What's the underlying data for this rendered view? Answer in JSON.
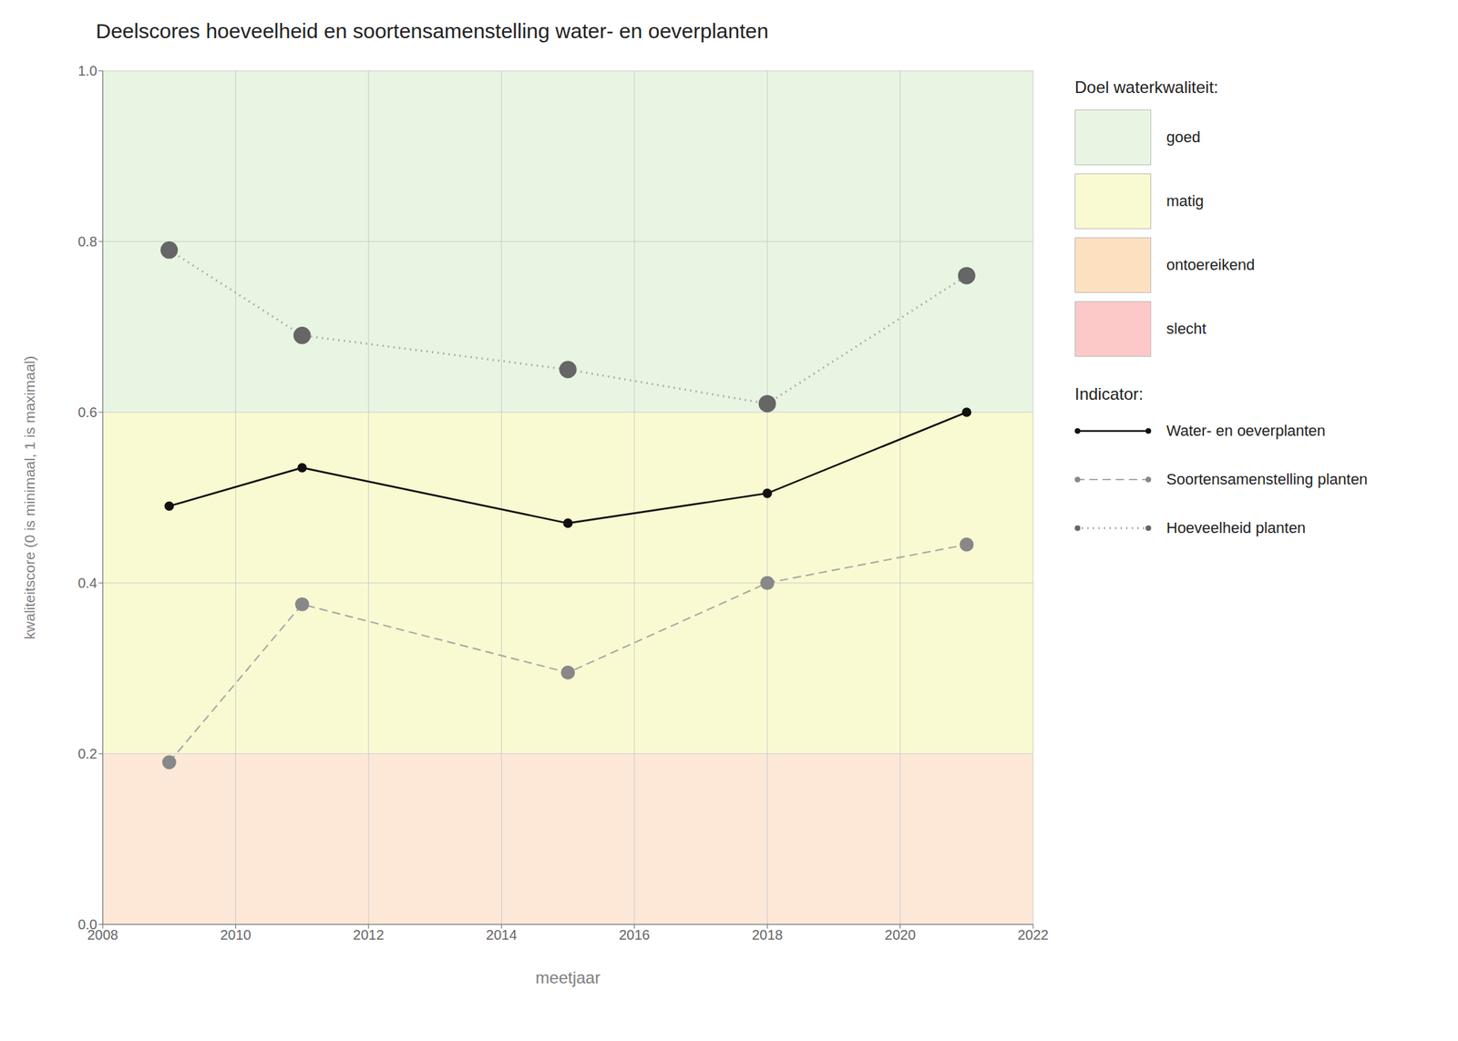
{
  "chart_data": {
    "type": "line",
    "title": "Deelscores hoeveelheid en soortensamenstelling water- en oeverplanten",
    "x_label": "meetjaar",
    "y_label": "kwaliteitscore (0 is minimaal, 1 is maximaal)",
    "x": [
      2009,
      2011,
      2015,
      2018,
      2021
    ],
    "series": [
      {
        "name": "Water- en oeverplanten",
        "values": [
          0.49,
          0.535,
          0.47,
          0.505,
          0.6
        ],
        "color": "#111111",
        "marker_color": "#111111",
        "line_style": "solid",
        "marker": "circle"
      },
      {
        "name": "Soortensamenstelling planten",
        "values": [
          0.19,
          0.375,
          0.295,
          0.4,
          0.445
        ],
        "color": "#aaaaaa",
        "marker_color": "#888888",
        "line_style": "dashed",
        "marker": "circle"
      },
      {
        "name": "Hoeveelheid planten",
        "values": [
          0.79,
          0.69,
          0.65,
          0.61,
          0.76
        ],
        "color": "#aaaaaa",
        "marker_color": "#666666",
        "line_style": "dotted",
        "marker": "circle"
      }
    ],
    "xlim": [
      2008,
      2022
    ],
    "ylim": [
      0.0,
      1.0
    ],
    "xticks": [
      2008,
      2010,
      2012,
      2014,
      2016,
      2018,
      2020,
      2022
    ],
    "yticks": [
      {
        "value": 0.0,
        "label": "0.0"
      },
      0.2,
      0.4,
      0.6,
      0.8,
      {
        "value": 1.0,
        "label": "1.0"
      }
    ],
    "bands": [
      {
        "from": 0.6,
        "to": 1.0,
        "color": "#e8f5e2"
      },
      {
        "from": 0.2,
        "to": 0.6,
        "color": "#fafad2"
      },
      {
        "from": 0.0,
        "to": 0.2,
        "color": "#fde8d8"
      }
    ],
    "grid": true,
    "grid_color": "#cccccc",
    "legend": "right",
    "quality_legend": {
      "title": "Doel waterkwaliteit:",
      "items": [
        {
          "label": "goed",
          "color": "#e8f5e2"
        },
        {
          "label": "matig",
          "color": "#fafad2"
        },
        {
          "label": "ontoereikend",
          "color": "#fde0c0"
        },
        {
          "label": "slecht",
          "color": "#fdc8c8"
        }
      ]
    },
    "indicator_legend_title": "Indicator:"
  }
}
